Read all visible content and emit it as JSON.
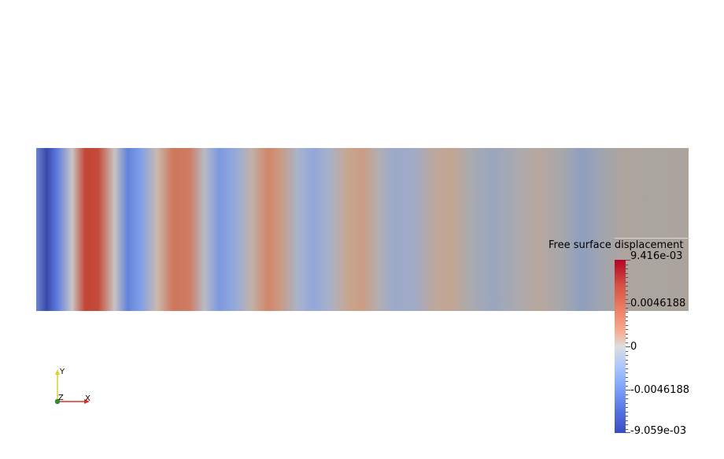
{
  "legend": {
    "title": "Free surface displacement",
    "max_label": "9.416e-03",
    "mid_high_label": "0.0046188",
    "zero_label": "0",
    "mid_low_label": "-0.0046188",
    "min_label": "-9.059e-03",
    "colormap": [
      "#3b4cc0",
      "#dddddd",
      "#b40426"
    ]
  },
  "axes": {
    "x_label": "X",
    "y_label": "Y",
    "z_label": "Z",
    "x_color": "#e52b2b",
    "y_color": "#e0d12a",
    "z_color": "#2e8b2e"
  },
  "field": {
    "colors": {
      "background": "#a8a39b"
    }
  }
}
